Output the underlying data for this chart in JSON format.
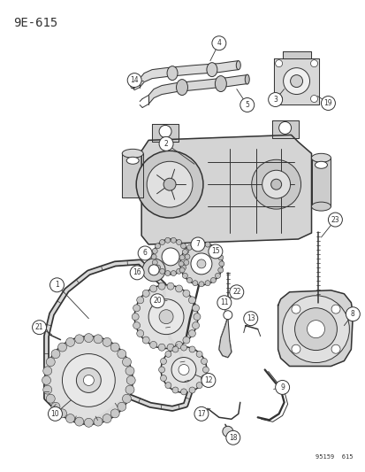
{
  "title_label": "9E-615",
  "footer_label": "95159  615",
  "bg_color": "#ffffff",
  "line_color": "#333333",
  "title_fontsize": 10,
  "footer_fontsize": 5,
  "fig_width": 4.14,
  "fig_height": 5.33,
  "dpi": 100,
  "lw": 0.7,
  "lw_thick": 1.1
}
